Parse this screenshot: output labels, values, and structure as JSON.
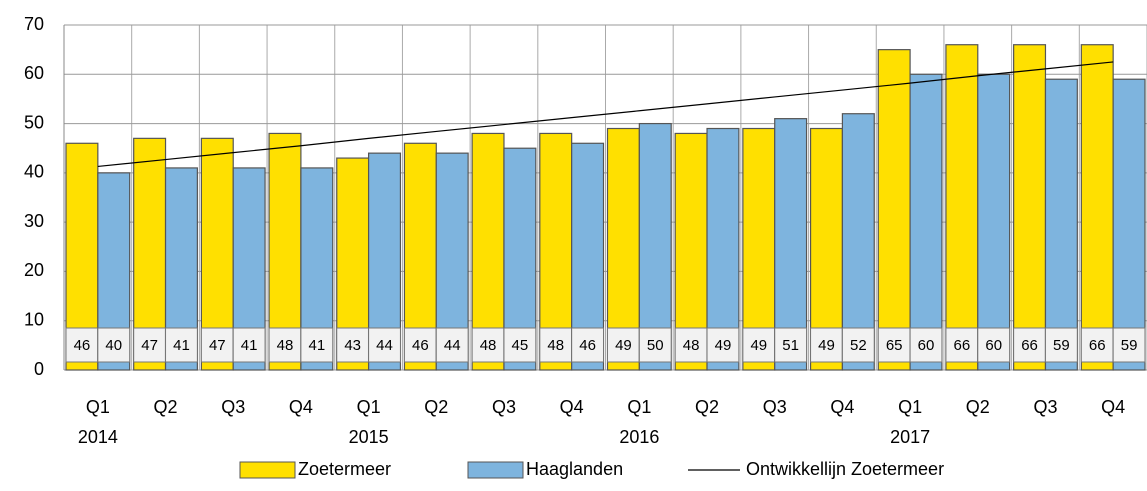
{
  "chart_data": {
    "type": "bar",
    "categories": [
      "Q1",
      "Q2",
      "Q3",
      "Q4",
      "Q1",
      "Q2",
      "Q3",
      "Q4",
      "Q1",
      "Q2",
      "Q3",
      "Q4",
      "Q1",
      "Q2",
      "Q3",
      "Q4"
    ],
    "year_labels": [
      "2014",
      null,
      null,
      null,
      "2015",
      null,
      null,
      null,
      "2016",
      null,
      null,
      null,
      "2017",
      null,
      null,
      null
    ],
    "series": [
      {
        "name": "Zoetermeer",
        "color": "#ffe000",
        "type": "bar",
        "values": [
          46,
          47,
          47,
          48,
          43,
          46,
          48,
          48,
          49,
          48,
          49,
          49,
          65,
          66,
          66,
          66
        ]
      },
      {
        "name": "Haaglanden",
        "color": "#7eb4de",
        "type": "bar",
        "values": [
          40,
          41,
          41,
          41,
          44,
          44,
          45,
          46,
          50,
          49,
          51,
          52,
          60,
          60,
          59,
          59
        ]
      },
      {
        "name": "Ontwikkellijn Zoetermeer",
        "color": "#000000",
        "type": "line",
        "values": [
          41.3,
          42.7,
          44.1,
          45.5,
          47.0,
          48.4,
          49.8,
          51.2,
          52.6,
          54.0,
          55.4,
          56.8,
          58.2,
          59.7,
          61.1,
          62.5
        ]
      }
    ],
    "ylim": [
      0,
      70
    ],
    "yticks": [
      0,
      10,
      20,
      30,
      40,
      50,
      60,
      70
    ],
    "grid": true,
    "legend": "bottom"
  }
}
